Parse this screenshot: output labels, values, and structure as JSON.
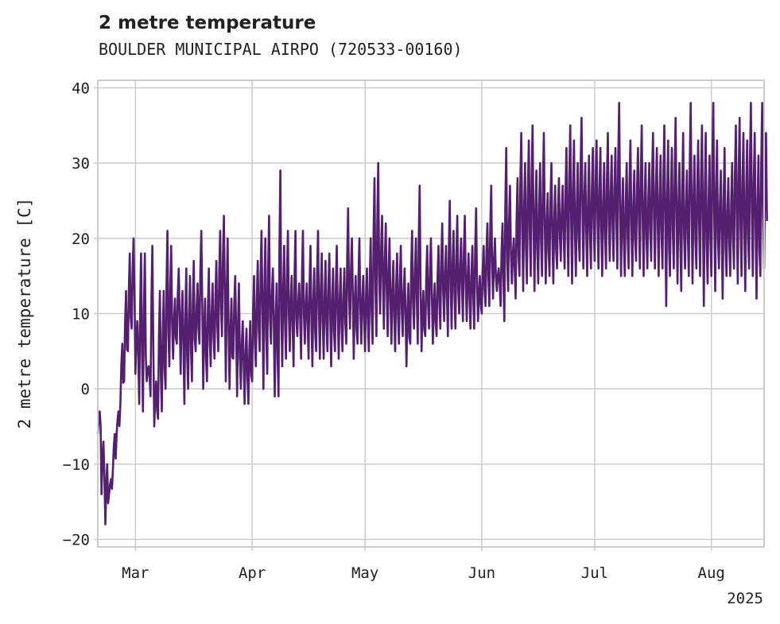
{
  "chart_data": {
    "type": "line",
    "title": "2 metre temperature",
    "subtitle": "BOULDER MUNICIPAL AIRPO (720533-00160)",
    "ylabel": "2 metre temperature [C]",
    "xlabel": "",
    "year_label": "2025",
    "x_tick_labels": [
      "Mar",
      "Apr",
      "May",
      "Jun",
      "Jul",
      "Aug"
    ],
    "x_tick_dates": [
      "2025-03-01",
      "2025-04-01",
      "2025-05-01",
      "2025-06-01",
      "2025-07-01",
      "2025-08-01"
    ],
    "y_ticks": [
      -20,
      -10,
      0,
      10,
      20,
      30,
      40
    ],
    "ylim": [
      -21,
      41
    ],
    "xlim": [
      "2025-02-19",
      "2025-08-15"
    ],
    "grid": true,
    "line_color": "#541f6e",
    "series": [
      {
        "x": [
          "2025-02-19",
          "2025-02-20",
          "2025-02-21",
          "2025-02-22",
          "2025-02-23",
          "2025-02-24",
          "2025-02-25",
          "2025-02-26",
          "2025-02-27",
          "2025-02-28",
          "2025-03-01",
          "2025-03-02",
          "2025-03-03",
          "2025-03-04",
          "2025-03-05",
          "2025-03-06",
          "2025-03-07",
          "2025-03-08",
          "2025-03-09",
          "2025-03-10",
          "2025-03-11",
          "2025-03-12",
          "2025-03-13",
          "2025-03-14",
          "2025-03-15",
          "2025-03-16",
          "2025-03-17",
          "2025-03-18",
          "2025-03-19",
          "2025-03-20",
          "2025-03-21",
          "2025-03-22",
          "2025-03-23",
          "2025-03-24",
          "2025-03-25",
          "2025-03-26",
          "2025-03-27",
          "2025-03-28",
          "2025-03-29",
          "2025-03-30",
          "2025-03-31",
          "2025-04-01",
          "2025-04-02",
          "2025-04-03",
          "2025-04-04",
          "2025-04-05",
          "2025-04-06",
          "2025-04-07",
          "2025-04-08",
          "2025-04-09",
          "2025-04-10",
          "2025-04-11",
          "2025-04-12",
          "2025-04-13",
          "2025-04-14",
          "2025-04-15",
          "2025-04-16",
          "2025-04-17",
          "2025-04-18",
          "2025-04-19",
          "2025-04-20",
          "2025-04-21",
          "2025-04-22",
          "2025-04-23",
          "2025-04-24",
          "2025-04-25",
          "2025-04-26",
          "2025-04-27",
          "2025-04-28",
          "2025-04-29",
          "2025-04-30",
          "2025-05-01",
          "2025-05-02",
          "2025-05-03",
          "2025-05-04",
          "2025-05-05",
          "2025-05-06",
          "2025-05-07",
          "2025-05-08",
          "2025-05-09",
          "2025-05-10",
          "2025-05-11",
          "2025-05-12",
          "2025-05-13",
          "2025-05-14",
          "2025-05-15",
          "2025-05-16",
          "2025-05-17",
          "2025-05-18",
          "2025-05-19",
          "2025-05-20",
          "2025-05-21",
          "2025-05-22",
          "2025-05-23",
          "2025-05-24",
          "2025-05-25",
          "2025-05-26",
          "2025-05-27",
          "2025-05-28",
          "2025-05-29",
          "2025-05-30",
          "2025-05-31",
          "2025-06-01",
          "2025-06-02",
          "2025-06-03",
          "2025-06-04",
          "2025-06-05",
          "2025-06-06",
          "2025-06-07",
          "2025-06-08",
          "2025-06-09",
          "2025-06-10",
          "2025-06-11",
          "2025-06-12",
          "2025-06-13",
          "2025-06-14",
          "2025-06-15",
          "2025-06-16",
          "2025-06-17",
          "2025-06-18",
          "2025-06-19",
          "2025-06-20",
          "2025-06-21",
          "2025-06-22",
          "2025-06-23",
          "2025-06-24",
          "2025-06-25",
          "2025-06-26",
          "2025-06-27",
          "2025-06-28",
          "2025-06-29",
          "2025-06-30",
          "2025-07-01",
          "2025-07-02",
          "2025-07-03",
          "2025-07-04",
          "2025-07-05",
          "2025-07-06",
          "2025-07-07",
          "2025-07-08",
          "2025-07-09",
          "2025-07-10",
          "2025-07-11",
          "2025-07-12",
          "2025-07-13",
          "2025-07-14",
          "2025-07-15",
          "2025-07-16",
          "2025-07-17",
          "2025-07-18",
          "2025-07-19",
          "2025-07-20",
          "2025-07-21",
          "2025-07-22",
          "2025-07-23",
          "2025-07-24",
          "2025-07-25",
          "2025-07-26",
          "2025-07-27",
          "2025-07-28",
          "2025-07-29",
          "2025-07-30",
          "2025-07-31",
          "2025-08-01",
          "2025-08-02",
          "2025-08-03",
          "2025-08-04",
          "2025-08-05",
          "2025-08-06",
          "2025-08-07",
          "2025-08-08",
          "2025-08-09",
          "2025-08-10",
          "2025-08-11",
          "2025-08-12",
          "2025-08-13",
          "2025-08-14",
          "2025-08-15"
        ],
        "y_max": [
          -3,
          -7,
          -10,
          -12,
          -6,
          -3,
          6,
          13,
          18,
          20,
          9,
          18,
          18,
          3,
          19,
          1,
          13,
          13,
          21,
          19,
          12,
          16,
          13,
          16,
          15,
          17,
          14,
          21,
          12,
          16,
          14,
          17,
          21,
          23,
          20,
          12,
          15,
          14,
          9,
          8,
          9,
          15,
          17,
          21,
          20,
          23,
          16,
          14,
          29,
          19,
          21,
          15,
          21,
          14,
          21,
          14,
          19,
          16,
          21,
          18,
          17,
          18,
          16,
          19,
          16,
          16,
          24,
          20,
          15,
          20,
          15,
          16,
          20,
          28,
          30,
          23,
          22,
          20,
          17,
          18,
          19,
          16,
          14,
          21,
          20,
          27,
          13,
          19,
          20,
          14,
          19,
          22,
          19,
          25,
          21,
          23,
          20,
          23,
          18,
          19,
          24,
          15,
          19,
          22,
          27,
          20,
          16,
          22,
          32,
          27,
          20,
          28,
          34,
          30,
          33,
          35,
          29,
          30,
          34,
          26,
          30,
          27,
          28,
          27,
          32,
          35,
          33,
          30,
          36,
          30,
          31,
          32,
          33,
          32,
          30,
          34,
          31,
          32,
          38,
          28,
          30,
          33,
          29,
          32,
          35,
          30,
          30,
          34,
          32,
          31,
          35,
          33,
          32,
          36,
          30,
          34,
          29,
          38,
          31,
          33,
          35,
          34,
          31,
          38,
          33,
          29,
          32,
          28,
          30,
          35,
          36,
          34,
          33,
          38,
          34,
          31,
          38,
          34
        ],
        "y_min": [
          -6,
          -14,
          -18,
          -14,
          -11,
          -6,
          -2,
          1,
          5,
          8,
          2,
          -2,
          -3,
          1,
          -1,
          -5,
          -4,
          -3,
          0,
          3,
          4,
          6,
          2,
          -2,
          0,
          1,
          5,
          6,
          0,
          1,
          3,
          4,
          5,
          7,
          1,
          0,
          4,
          -1,
          0,
          -2,
          -2,
          1,
          3,
          5,
          0,
          2,
          6,
          -1,
          -1,
          3,
          4,
          5,
          3,
          7,
          4,
          6,
          4,
          3,
          5,
          4,
          4,
          5,
          3,
          5,
          4,
          5,
          6,
          8,
          4,
          6,
          6,
          5,
          5,
          6,
          7,
          10,
          8,
          7,
          6,
          5,
          6,
          7,
          3,
          6,
          8,
          6,
          5,
          7,
          8,
          6,
          7,
          8,
          9,
          7,
          8,
          8,
          10,
          9,
          9,
          8,
          8,
          9,
          10,
          11,
          11,
          12,
          13,
          11,
          9,
          13,
          14,
          12,
          15,
          13,
          14,
          15,
          13,
          14,
          15,
          14,
          15,
          14,
          16,
          17,
          16,
          15,
          14,
          15,
          17,
          16,
          15,
          16,
          17,
          16,
          15,
          16,
          17,
          17,
          16,
          15,
          15,
          16,
          15,
          17,
          16,
          15,
          16,
          17,
          16,
          15,
          16,
          11,
          15,
          16,
          14,
          13,
          16,
          15,
          14,
          16,
          15,
          11,
          14,
          15,
          13,
          16,
          12,
          15,
          15,
          16,
          14,
          15,
          13,
          16,
          15,
          12,
          15,
          16
        ]
      }
    ]
  }
}
